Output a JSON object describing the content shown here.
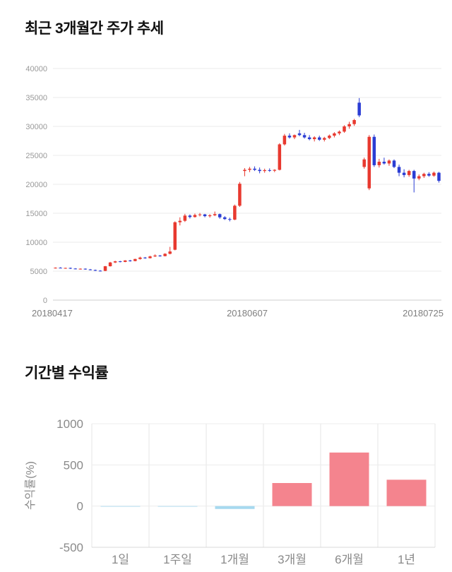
{
  "sections": {
    "price_trend": {
      "title": "최근 3개월간 주가 추세"
    },
    "returns": {
      "title": "기간별 수익률"
    }
  },
  "chart_data": [
    {
      "type": "candlestick",
      "title": "최근 3개월간 주가 추세",
      "ylim": [
        0,
        40000
      ],
      "yticks": [
        0,
        5000,
        10000,
        15000,
        20000,
        25000,
        30000,
        35000,
        40000
      ],
      "xticks": [
        "20180417",
        "20180607",
        "20180725"
      ],
      "up_color": "#e8392f",
      "down_color": "#2b3dd4",
      "grid_color": "#ebebeb",
      "axis_color": "#cfcfcf",
      "candles": [
        [
          5550,
          5650,
          5450,
          5600
        ],
        [
          5600,
          5680,
          5480,
          5520
        ],
        [
          5520,
          5600,
          5420,
          5560
        ],
        [
          5560,
          5620,
          5380,
          5450
        ],
        [
          5450,
          5520,
          5320,
          5380
        ],
        [
          5380,
          5480,
          5280,
          5420
        ],
        [
          5420,
          5480,
          5250,
          5300
        ],
        [
          5300,
          5380,
          5150,
          5200
        ],
        [
          5200,
          5280,
          5020,
          5080
        ],
        [
          5080,
          5180,
          4950,
          5050
        ],
        [
          5050,
          5900,
          5000,
          5850
        ],
        [
          5850,
          6600,
          5800,
          6500
        ],
        [
          6500,
          6800,
          6400,
          6700
        ],
        [
          6700,
          6780,
          6520,
          6600
        ],
        [
          6600,
          6900,
          6550,
          6850
        ],
        [
          6850,
          6950,
          6650,
          6750
        ],
        [
          6750,
          7150,
          6700,
          7100
        ],
        [
          7100,
          7500,
          7000,
          7350
        ],
        [
          7350,
          7450,
          7150,
          7250
        ],
        [
          7250,
          7650,
          7200,
          7550
        ],
        [
          7550,
          7900,
          7450,
          7700
        ],
        [
          7700,
          7800,
          7500,
          7600
        ],
        [
          7600,
          8100,
          7550,
          8000
        ],
        [
          8000,
          9200,
          7900,
          8400
        ],
        [
          8700,
          13600,
          8600,
          13450
        ],
        [
          13450,
          14300,
          12900,
          13700
        ],
        [
          13700,
          14900,
          13500,
          14600
        ],
        [
          14600,
          14800,
          14100,
          14350
        ],
        [
          14350,
          14950,
          14250,
          14700
        ],
        [
          14700,
          15050,
          14450,
          14800
        ],
        [
          14800,
          14900,
          14300,
          14500
        ],
        [
          14500,
          14850,
          14250,
          14650
        ],
        [
          14650,
          15300,
          14500,
          14850
        ],
        [
          14850,
          14950,
          14050,
          14300
        ],
        [
          14300,
          14500,
          13850,
          14000
        ],
        [
          14000,
          14250,
          13600,
          13900
        ],
        [
          13900,
          16500,
          13800,
          16300
        ],
        [
          16300,
          20400,
          16100,
          20100
        ],
        [
          22300,
          22800,
          21400,
          22500
        ],
        [
          22500,
          23000,
          22100,
          22700
        ],
        [
          22700,
          23100,
          22300,
          22500
        ],
        [
          22500,
          22900,
          21900,
          22300
        ],
        [
          22300,
          22700,
          22000,
          22450
        ],
        [
          22450,
          22750,
          22150,
          22350
        ],
        [
          22350,
          22600,
          22100,
          22500
        ],
        [
          22500,
          27100,
          22400,
          26900
        ],
        [
          26900,
          28700,
          26700,
          28400
        ],
        [
          28400,
          28800,
          27900,
          28100
        ],
        [
          28100,
          28600,
          27800,
          28500
        ],
        [
          28800,
          29400,
          28300,
          28500
        ],
        [
          28500,
          28900,
          27900,
          28100
        ],
        [
          28100,
          28500,
          27600,
          27800
        ],
        [
          27800,
          28300,
          27400,
          28100
        ],
        [
          28100,
          28400,
          27500,
          27700
        ],
        [
          27700,
          28200,
          27400,
          28000
        ],
        [
          28000,
          28600,
          27800,
          28400
        ],
        [
          28400,
          29000,
          28100,
          28800
        ],
        [
          28800,
          29300,
          28500,
          29100
        ],
        [
          29100,
          30200,
          28900,
          30000
        ],
        [
          30000,
          30800,
          29600,
          30400
        ],
        [
          30400,
          31300,
          30100,
          31100
        ],
        [
          34100,
          34900,
          31600,
          31900
        ],
        [
          23000,
          24600,
          22700,
          24300
        ],
        [
          19300,
          28500,
          19000,
          28200
        ],
        [
          28200,
          28600,
          23000,
          23300
        ],
        [
          23300,
          24400,
          22900,
          23900
        ],
        [
          23900,
          24600,
          23400,
          23600
        ],
        [
          23600,
          24300,
          23200,
          24100
        ],
        [
          24100,
          24300,
          22800,
          23000
        ],
        [
          23000,
          23400,
          21400,
          22000
        ],
        [
          22000,
          22600,
          21200,
          21600
        ],
        [
          21600,
          22500,
          21300,
          22300
        ],
        [
          22300,
          22500,
          18600,
          21000
        ],
        [
          21000,
          21700,
          20700,
          21400
        ],
        [
          21400,
          22000,
          21100,
          21800
        ],
        [
          21800,
          22100,
          21300,
          21500
        ],
        [
          21500,
          22200,
          21300,
          22000
        ],
        [
          22000,
          22150,
          20300,
          20600
        ]
      ]
    },
    {
      "type": "bar",
      "title": "기간별 수익률",
      "ylabel": "수익률(%)",
      "categories": [
        "1일",
        "1주일",
        "1개월",
        "3개월",
        "6개월",
        "1년"
      ],
      "values": [
        -4,
        -6,
        -35,
        280,
        650,
        320
      ],
      "yticks": [
        1000,
        500,
        0,
        -500
      ],
      "ylim": [
        -500,
        1000
      ],
      "positive_color": "#f4848e",
      "negative_color": "#a6d9ef",
      "grid_color": "#e4e4e4",
      "axis_color": "#d8d8d8"
    }
  ]
}
